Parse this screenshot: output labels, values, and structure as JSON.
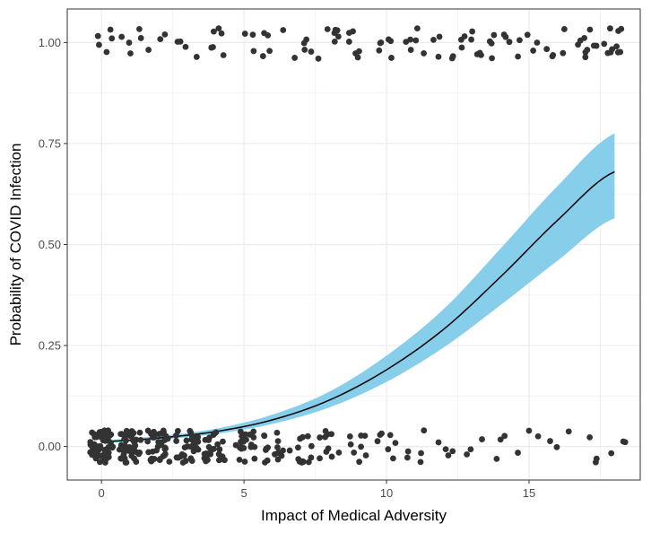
{
  "chart_data": {
    "type": "scatter",
    "title": "",
    "xlabel": "Impact of Medical Adversity",
    "ylabel": "Probability of COVID Infection",
    "xlim": [
      -1.2,
      18.9
    ],
    "ylim": [
      -0.083,
      1.083
    ],
    "x_ticks": [
      0,
      5,
      10,
      15
    ],
    "x_tick_labels": [
      "0",
      "5",
      "10",
      "15"
    ],
    "y_ticks": [
      0,
      0.25,
      0.5,
      0.75,
      1
    ],
    "y_tick_labels": [
      "0.00",
      "0.25",
      "0.50",
      "0.75",
      "1.00"
    ],
    "grid": true,
    "series": [
      {
        "name": "observations (jittered)",
        "kind": "points",
        "outcome_levels": [
          0,
          1
        ],
        "x_range_outcome_0": [
          0,
          18
        ],
        "x_range_outcome_1": [
          0,
          18
        ],
        "color": "#333333"
      },
      {
        "name": "fitted probability",
        "kind": "line",
        "x": [
          0,
          2,
          4,
          6,
          8,
          10,
          12,
          14,
          16,
          18
        ],
        "y": [
          0.012,
          0.021,
          0.037,
          0.066,
          0.115,
          0.19,
          0.29,
          0.42,
          0.56,
          0.68
        ],
        "color": "#000000"
      },
      {
        "name": "95% confidence band",
        "kind": "band",
        "x": [
          0,
          2,
          4,
          6,
          8,
          10,
          12,
          14,
          16,
          18
        ],
        "lower": [
          0.009,
          0.017,
          0.031,
          0.056,
          0.097,
          0.16,
          0.245,
          0.35,
          0.46,
          0.565
        ],
        "upper": [
          0.016,
          0.026,
          0.044,
          0.079,
          0.136,
          0.225,
          0.34,
          0.49,
          0.645,
          0.775
        ],
        "color": "#87ceeb"
      }
    ]
  }
}
